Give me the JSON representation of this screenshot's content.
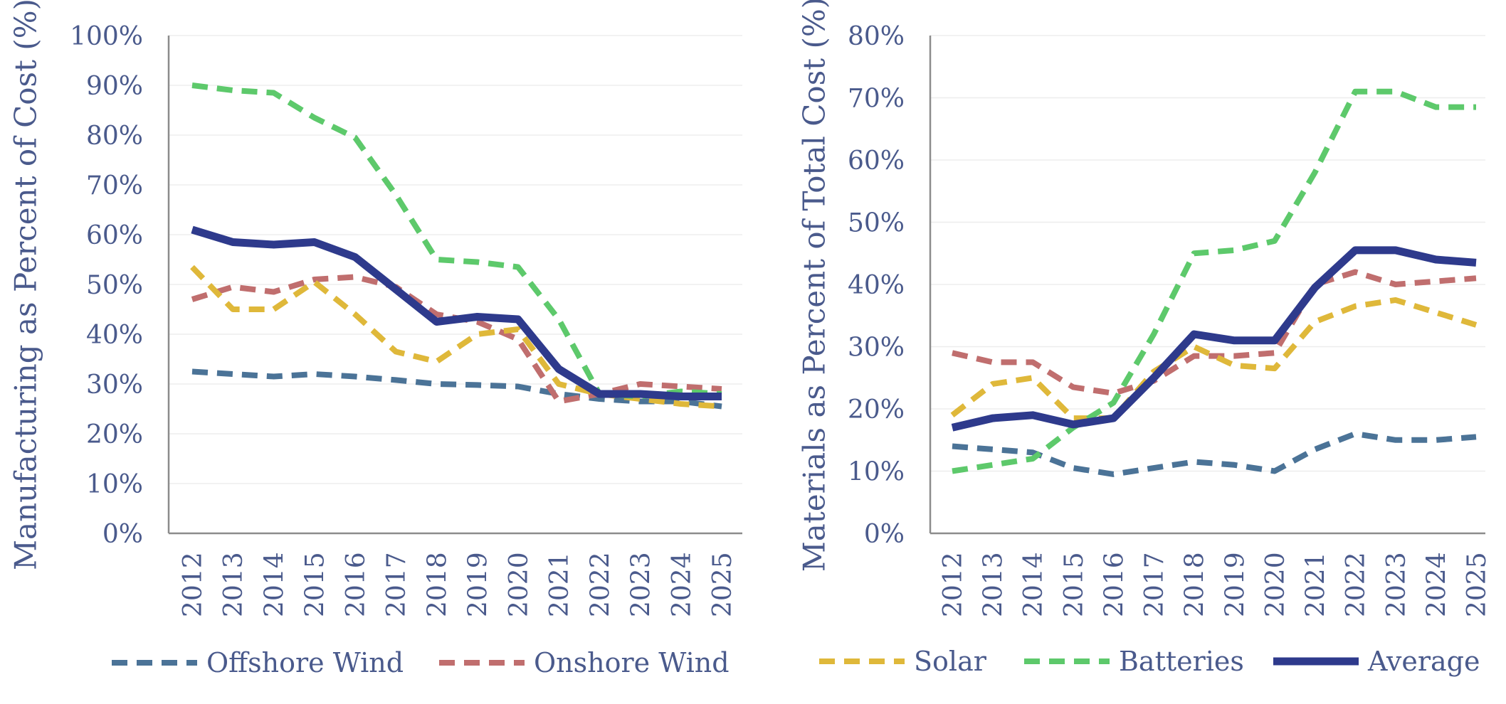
{
  "chart_data": [
    {
      "type": "line",
      "title": "",
      "xlabel": "",
      "ylabel": "Manufacturing as Percent of Cost (%)",
      "ylim": [
        0,
        100
      ],
      "ytick_step": 10,
      "ytick_format": "%",
      "grid": true,
      "categories": [
        "2012",
        "2013",
        "2014",
        "2015",
        "2016",
        "2017",
        "2018",
        "2019",
        "2020",
        "2021",
        "2022",
        "2023",
        "2024",
        "2025"
      ],
      "series": [
        {
          "name": "Offshore Wind",
          "color": "#4B7397",
          "dashed": true,
          "values": [
            32.5,
            32,
            31.5,
            32,
            31.5,
            30.8,
            30,
            29.8,
            29.5,
            28,
            27,
            26.5,
            26.5,
            25.5
          ]
        },
        {
          "name": "Onshore Wind",
          "color": "#C06E6E",
          "dashed": true,
          "values": [
            47,
            49.5,
            48.5,
            51,
            51.5,
            49.5,
            44,
            42.5,
            39,
            26.5,
            28,
            30,
            29.5,
            29
          ]
        },
        {
          "name": "Solar",
          "color": "#DFB83A",
          "dashed": true,
          "values": [
            53.5,
            45,
            45,
            50.5,
            44,
            36.5,
            34.5,
            40,
            41,
            30,
            28,
            27,
            26,
            25.5
          ]
        },
        {
          "name": "Batteries",
          "color": "#5DC96B",
          "dashed": true,
          "values": [
            90,
            89,
            88.5,
            83.5,
            79.5,
            68,
            55,
            54.5,
            53.5,
            43,
            28,
            27.5,
            28.5,
            28
          ]
        },
        {
          "name": "Average",
          "color": "#2E3A8C",
          "dashed": false,
          "values": [
            61,
            58.5,
            58,
            58.5,
            55.5,
            49,
            42.5,
            43.5,
            43,
            33,
            28,
            28,
            27.5,
            27.5
          ]
        }
      ]
    },
    {
      "type": "line",
      "title": "",
      "xlabel": "",
      "ylabel": "Materials as Percent of Total Cost (%)",
      "ylim": [
        0,
        80
      ],
      "ytick_step": 10,
      "ytick_format": "%",
      "grid": true,
      "categories": [
        "2012",
        "2013",
        "2014",
        "2015",
        "2016",
        "2017",
        "2018",
        "2019",
        "2020",
        "2021",
        "2022",
        "2023",
        "2024",
        "2025"
      ],
      "series": [
        {
          "name": "Offshore Wind",
          "color": "#4B7397",
          "dashed": true,
          "values": [
            14,
            13.5,
            13,
            10.5,
            9.5,
            10.5,
            11.5,
            11,
            10,
            13.5,
            16,
            15,
            15,
            15.5
          ]
        },
        {
          "name": "Onshore Wind",
          "color": "#C06E6E",
          "dashed": true,
          "values": [
            29,
            27.5,
            27.5,
            23.5,
            22.5,
            24.5,
            28.5,
            28.5,
            29,
            40,
            42,
            40,
            40.5,
            41
          ]
        },
        {
          "name": "Solar",
          "color": "#DFB83A",
          "dashed": true,
          "values": [
            19,
            24,
            25,
            18.5,
            18.5,
            26,
            30,
            27,
            26.5,
            34,
            36.5,
            37.5,
            35.5,
            33.5
          ]
        },
        {
          "name": "Batteries",
          "color": "#5DC96B",
          "dashed": true,
          "values": [
            10,
            11,
            12,
            17,
            21,
            32,
            45,
            45.5,
            47,
            58,
            71,
            71,
            68.5,
            68.5
          ]
        },
        {
          "name": "Average",
          "color": "#2E3A8C",
          "dashed": false,
          "values": [
            17,
            18.5,
            19,
            17.5,
            18.5,
            25,
            32,
            31,
            31,
            39.5,
            45.5,
            45.5,
            44,
            43.5
          ]
        }
      ]
    }
  ],
  "legend": {
    "left": [
      "Offshore Wind",
      "Onshore Wind"
    ],
    "right": [
      "Solar",
      "Batteries",
      "Average"
    ]
  }
}
